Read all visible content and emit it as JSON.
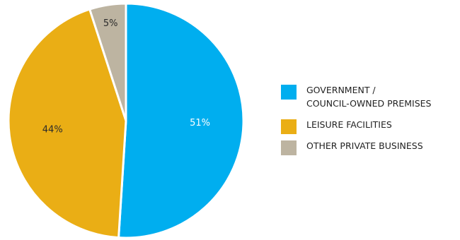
{
  "chart_data": {
    "type": "pie",
    "title": "",
    "slices": [
      {
        "label": "GOVERNMENT / COUNCIL-OWNED PREMISES",
        "value": 51,
        "display": "51%",
        "color": "#00AEEF",
        "label_color": "#ffffff"
      },
      {
        "label": "LEISURE FACILITIES",
        "value": 44,
        "display": "44%",
        "color": "#EAAE15",
        "label_color": "#2b2b2b"
      },
      {
        "label": "OTHER PRIVATE BUSINESS",
        "value": 5,
        "display": "5%",
        "color": "#BDB4A1",
        "label_color": "#2b2b2b"
      }
    ],
    "legend": {
      "position": "right",
      "items": [
        {
          "lines": [
            "GOVERNMENT /",
            "COUNCIL-OWNED PREMISES"
          ],
          "color": "#00AEEF"
        },
        {
          "lines": [
            "LEISURE FACILITIES"
          ],
          "color": "#EAAE15"
        },
        {
          "lines": [
            "OTHER PRIVATE BUSINESS"
          ],
          "color": "#BDB4A1"
        }
      ]
    }
  }
}
